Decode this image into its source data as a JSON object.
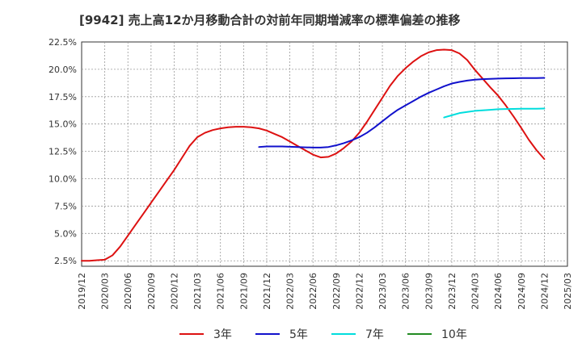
{
  "chart_data": {
    "type": "line",
    "title": "[9942]  売上高12か月移動合計の対前年同期増減率の標準偏差の推移",
    "xlabel": "",
    "ylabel": "",
    "x_ticks": [
      "2019/12",
      "2020/03",
      "2020/06",
      "2020/09",
      "2020/12",
      "2021/03",
      "2021/06",
      "2021/09",
      "2021/12",
      "2022/03",
      "2022/06",
      "2022/09",
      "2022/12",
      "2023/03",
      "2023/06",
      "2023/09",
      "2023/12",
      "2024/03",
      "2024/06",
      "2024/09",
      "2024/12",
      "2025/03"
    ],
    "y_ticks": [
      "2.5%",
      "5.0%",
      "7.5%",
      "10.0%",
      "12.5%",
      "15.0%",
      "17.5%",
      "20.0%",
      "22.5%"
    ],
    "ylim": [
      2.0,
      22.5
    ],
    "xlim": [
      "2019/12",
      "2025/03"
    ],
    "grid": true,
    "legend_position": "bottom",
    "series": [
      {
        "name": "3年",
        "color": "#dd1111",
        "points": [
          [
            "2019/12",
            2.5
          ],
          [
            "2020/01",
            2.5
          ],
          [
            "2020/02",
            2.55
          ],
          [
            "2020/03",
            2.6
          ],
          [
            "2020/04",
            3.0
          ],
          [
            "2020/05",
            3.8
          ],
          [
            "2020/06",
            4.8
          ],
          [
            "2020/07",
            5.8
          ],
          [
            "2020/08",
            6.8
          ],
          [
            "2020/09",
            7.8
          ],
          [
            "2020/10",
            8.8
          ],
          [
            "2020/11",
            9.8
          ],
          [
            "2020/12",
            10.8
          ],
          [
            "2021/01",
            11.9
          ],
          [
            "2021/02",
            13.0
          ],
          [
            "2021/03",
            13.8
          ],
          [
            "2021/04",
            14.2
          ],
          [
            "2021/05",
            14.45
          ],
          [
            "2021/06",
            14.6
          ],
          [
            "2021/07",
            14.7
          ],
          [
            "2021/08",
            14.75
          ],
          [
            "2021/09",
            14.75
          ],
          [
            "2021/10",
            14.7
          ],
          [
            "2021/11",
            14.6
          ],
          [
            "2021/12",
            14.4
          ],
          [
            "2022/01",
            14.1
          ],
          [
            "2022/02",
            13.8
          ],
          [
            "2022/03",
            13.4
          ],
          [
            "2022/04",
            13.0
          ],
          [
            "2022/05",
            12.6
          ],
          [
            "2022/06",
            12.2
          ],
          [
            "2022/07",
            11.95
          ],
          [
            "2022/08",
            12.0
          ],
          [
            "2022/09",
            12.3
          ],
          [
            "2022/10",
            12.8
          ],
          [
            "2022/11",
            13.4
          ],
          [
            "2022/12",
            14.2
          ],
          [
            "2023/01",
            15.2
          ],
          [
            "2023/02",
            16.3
          ],
          [
            "2023/03",
            17.4
          ],
          [
            "2023/04",
            18.5
          ],
          [
            "2023/05",
            19.4
          ],
          [
            "2023/06",
            20.1
          ],
          [
            "2023/07",
            20.7
          ],
          [
            "2023/08",
            21.2
          ],
          [
            "2023/09",
            21.55
          ],
          [
            "2023/10",
            21.75
          ],
          [
            "2023/11",
            21.8
          ],
          [
            "2023/12",
            21.75
          ],
          [
            "2024/01",
            21.45
          ],
          [
            "2024/02",
            20.85
          ],
          [
            "2024/03",
            19.95
          ],
          [
            "2024/04",
            19.15
          ],
          [
            "2024/05",
            18.35
          ],
          [
            "2024/06",
            17.6
          ],
          [
            "2024/07",
            16.7
          ],
          [
            "2024/08",
            15.7
          ],
          [
            "2024/09",
            14.65
          ],
          [
            "2024/10",
            13.55
          ],
          [
            "2024/11",
            12.6
          ],
          [
            "2024/12",
            11.8
          ]
        ]
      },
      {
        "name": "5年",
        "color": "#1111cc",
        "points": [
          [
            "2021/11",
            12.9
          ],
          [
            "2021/12",
            12.95
          ],
          [
            "2022/01",
            12.95
          ],
          [
            "2022/02",
            12.95
          ],
          [
            "2022/03",
            12.92
          ],
          [
            "2022/04",
            12.9
          ],
          [
            "2022/05",
            12.87
          ],
          [
            "2022/06",
            12.85
          ],
          [
            "2022/07",
            12.85
          ],
          [
            "2022/08",
            12.9
          ],
          [
            "2022/09",
            13.05
          ],
          [
            "2022/10",
            13.25
          ],
          [
            "2022/11",
            13.5
          ],
          [
            "2022/12",
            13.8
          ],
          [
            "2023/01",
            14.2
          ],
          [
            "2023/02",
            14.7
          ],
          [
            "2023/03",
            15.25
          ],
          [
            "2023/04",
            15.8
          ],
          [
            "2023/05",
            16.3
          ],
          [
            "2023/06",
            16.7
          ],
          [
            "2023/07",
            17.1
          ],
          [
            "2023/08",
            17.5
          ],
          [
            "2023/09",
            17.85
          ],
          [
            "2023/10",
            18.15
          ],
          [
            "2023/11",
            18.45
          ],
          [
            "2023/12",
            18.7
          ],
          [
            "2024/01",
            18.85
          ],
          [
            "2024/02",
            18.97
          ],
          [
            "2024/03",
            19.05
          ],
          [
            "2024/04",
            19.1
          ],
          [
            "2024/05",
            19.13
          ],
          [
            "2024/06",
            19.15
          ],
          [
            "2024/07",
            19.17
          ],
          [
            "2024/08",
            19.18
          ],
          [
            "2024/09",
            19.2
          ],
          [
            "2024/10",
            19.2
          ],
          [
            "2024/11",
            19.2
          ],
          [
            "2024/12",
            19.22
          ]
        ]
      },
      {
        "name": "7年",
        "color": "#00dddd",
        "points": [
          [
            "2023/11",
            15.6
          ],
          [
            "2023/12",
            15.8
          ],
          [
            "2024/01",
            16.0
          ],
          [
            "2024/02",
            16.1
          ],
          [
            "2024/03",
            16.2
          ],
          [
            "2024/04",
            16.25
          ],
          [
            "2024/05",
            16.3
          ],
          [
            "2024/06",
            16.35
          ],
          [
            "2024/07",
            16.37
          ],
          [
            "2024/08",
            16.38
          ],
          [
            "2024/09",
            16.4
          ],
          [
            "2024/10",
            16.4
          ],
          [
            "2024/11",
            16.4
          ],
          [
            "2024/12",
            16.42
          ]
        ]
      },
      {
        "name": "10年",
        "color": "#228b22",
        "points": []
      }
    ]
  }
}
